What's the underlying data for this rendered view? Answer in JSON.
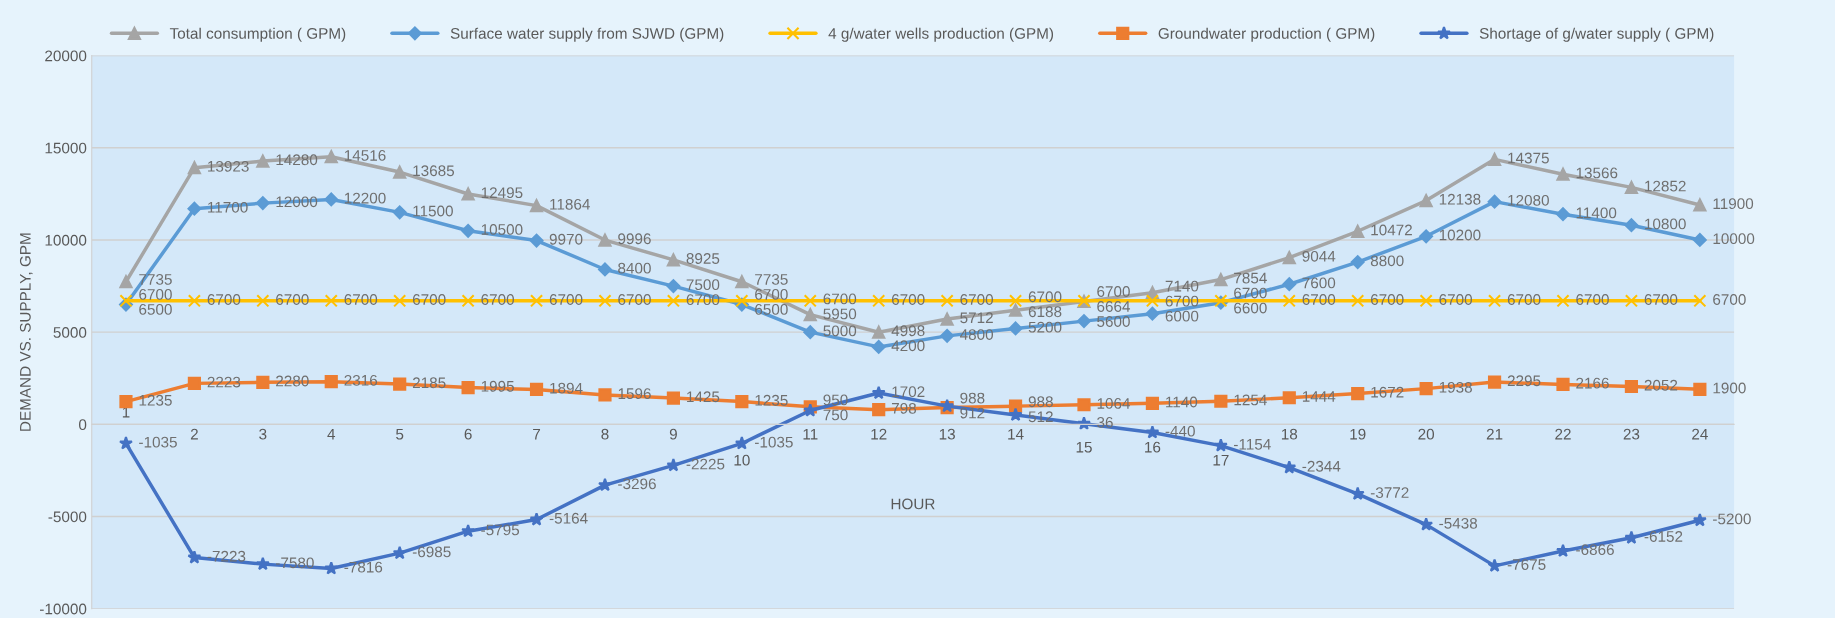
{
  "chart_data": {
    "type": "line",
    "ylabel": "DEMAND VS. SUPPLY, GPM",
    "xlabel": "HOUR",
    "categories": [
      "1",
      "2",
      "3",
      "4",
      "5",
      "6",
      "7",
      "8",
      "9",
      "10",
      "11",
      "12",
      "13",
      "14",
      "15",
      "16",
      "17",
      "18",
      "19",
      "20",
      "21",
      "22",
      "23",
      "24"
    ],
    "series": [
      {
        "name": "Total consumption ( GPM)",
        "color": "#a5a5a5",
        "marker": "triangle",
        "values": [
          7735,
          13923,
          14280,
          14516,
          13685,
          12495,
          11864,
          9996,
          8925,
          7735,
          5950,
          4998,
          5712,
          6188,
          6664,
          7140,
          7854,
          9044,
          10472,
          12138,
          14375,
          13566,
          12852,
          11900
        ]
      },
      {
        "name": "Surface water supply from SJWD (GPM)",
        "color": "#5b9bd5",
        "marker": "diamond",
        "values": [
          6500,
          11700,
          12000,
          12200,
          11500,
          10500,
          9970,
          8400,
          7500,
          6500,
          5000,
          4200,
          4800,
          5200,
          5600,
          6000,
          6600,
          7600,
          8800,
          10200,
          12080,
          11400,
          10800,
          10000
        ]
      },
      {
        "name": "4 g/water wells production (GPM)",
        "color": "#ffc000",
        "marker": "cross",
        "values": [
          6700,
          6700,
          6700,
          6700,
          6700,
          6700,
          6700,
          6700,
          6700,
          6700,
          6700,
          6700,
          6700,
          6700,
          6700,
          6700,
          6700,
          6700,
          6700,
          6700,
          6700,
          6700,
          6700,
          6700
        ]
      },
      {
        "name": "Groundwater production ( GPM)",
        "color": "#ed7d31",
        "marker": "square",
        "values": [
          1235,
          2223,
          2280,
          2316,
          2185,
          1995,
          1894,
          1596,
          1425,
          1235,
          950,
          798,
          912,
          988,
          1064,
          1140,
          1254,
          1444,
          1672,
          1938,
          2295,
          2166,
          2052,
          1900
        ]
      },
      {
        "name": "Shortage of g/water supply ( GPM)",
        "color": "#4472c4",
        "marker": "star",
        "values": [
          -1035,
          -7223,
          -7580,
          -7816,
          -6985,
          -5795,
          -5164,
          -3296,
          -2225,
          -1035,
          750,
          1702,
          988,
          512,
          36,
          -440,
          -1154,
          -2344,
          -3772,
          -5438,
          -7675,
          -6866,
          -6152,
          -5200
        ]
      }
    ],
    "ylim": [
      -10000,
      20000
    ],
    "yticks": [
      -10000,
      -5000,
      0,
      5000,
      10000,
      15000,
      20000
    ],
    "grid": "y",
    "legend": "top",
    "data_labels": true
  }
}
